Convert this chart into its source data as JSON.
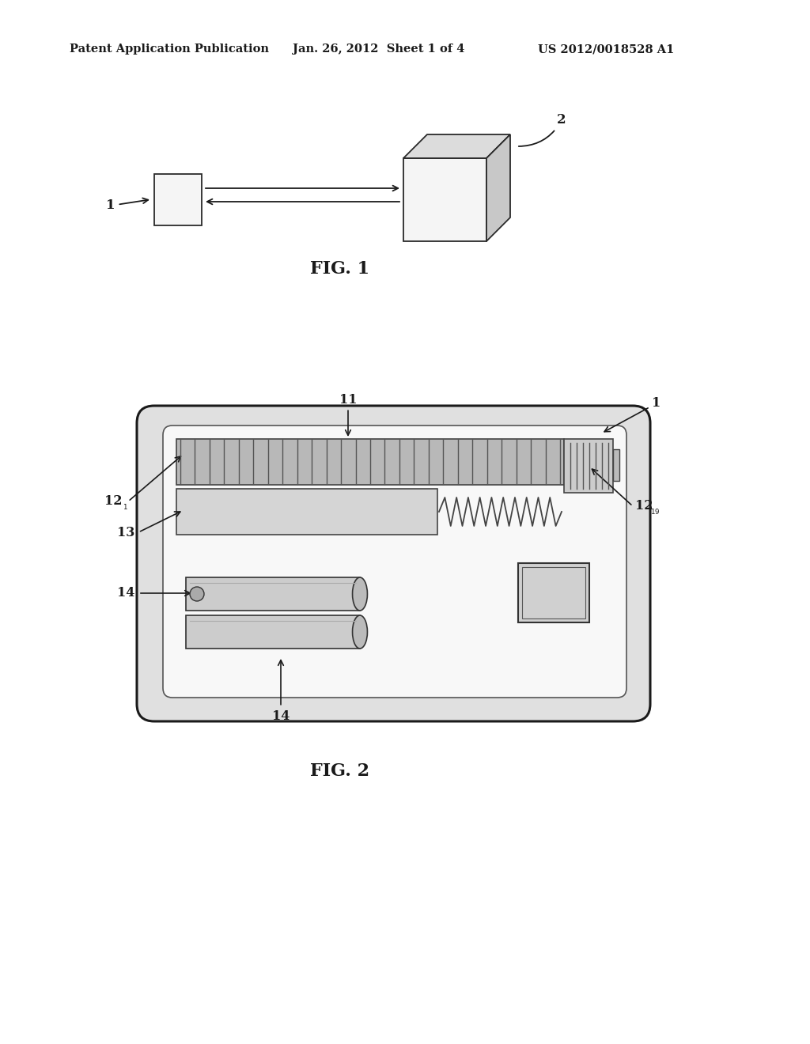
{
  "bg_color": "#ffffff",
  "header_left": "Patent Application Publication",
  "header_mid": "Jan. 26, 2012  Sheet 1 of 4",
  "header_right": "US 2012/0018528 A1",
  "fig1_label": "FIG. 1",
  "fig2_label": "FIG. 2",
  "text_color": "#1a1a1a"
}
